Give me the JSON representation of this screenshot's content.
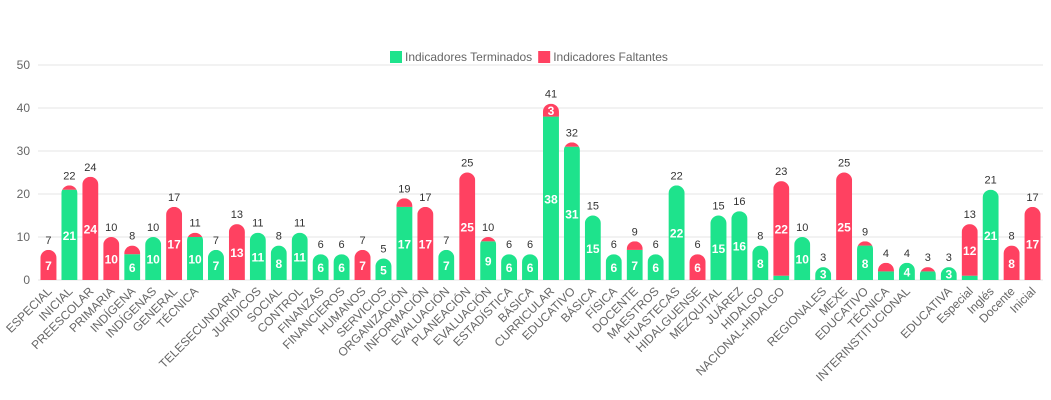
{
  "chart_data": {
    "type": "stacked-bar",
    "categories": [
      "ESPECIAL",
      "INICIAL",
      "PREESCOLAR",
      "PRIMARIA",
      "INDÍGENA",
      "INDÍGENAS",
      "GENERAL",
      "TÉCNICA",
      null,
      "TELESECUNDARIA",
      "JURÍDICOS",
      "SOCIAL",
      "CONTROL",
      "FINANZAS",
      "FINANCIEROS",
      "HUMANOS",
      "SERVICIOS",
      "ORGANIZACIÓN",
      "INFORMACIÓN",
      "EVALUACIÓN",
      "PLANEACIÓN",
      "EVALUACIÓN",
      "ESTADÍSTICA",
      "BÁSICA",
      "CURRICULAR",
      "EDUCATIVO",
      "BÁSICA",
      "FÍSICA",
      "DOCENTE",
      "MAESTROS",
      "HUASTECAS",
      "HIDALGUENSE",
      "MEZQUITAL",
      "JUÁREZ",
      "HIDALGO",
      "NACIONAL-HIDALGO",
      null,
      "REGIONALES",
      "MEXE",
      "EDUCATIVO",
      "TÉCNICA",
      "INTERINSTITUCIONAL",
      null,
      "EDUCATIVA",
      "Especial",
      "Inglés",
      "Docente",
      "Inicial"
    ],
    "series": [
      {
        "name": "Indicadores Terminados",
        "color": "#1ee38c",
        "values": [
          0,
          21,
          0,
          0,
          6,
          10,
          0,
          10,
          7,
          0,
          11,
          8,
          11,
          6,
          6,
          0,
          5,
          17,
          0,
          7,
          0,
          9,
          6,
          6,
          38,
          31,
          15,
          6,
          7,
          6,
          22,
          0,
          15,
          16,
          8,
          1,
          10,
          3,
          0,
          8,
          2,
          4,
          2,
          3,
          1,
          21,
          0,
          0
        ]
      },
      {
        "name": "Indicadores Faltantes",
        "color": "#ff4161",
        "values": [
          7,
          1,
          24,
          10,
          2,
          0,
          17,
          1,
          0,
          13,
          0,
          0,
          0,
          0,
          0,
          7,
          0,
          2,
          17,
          0,
          25,
          1,
          0,
          0,
          3,
          1,
          0,
          0,
          2,
          0,
          0,
          6,
          0,
          0,
          0,
          22,
          0,
          0,
          25,
          1,
          2,
          0,
          1,
          0,
          12,
          0,
          8,
          17
        ]
      }
    ],
    "totals": [
      7,
      22,
      24,
      10,
      8,
      10,
      17,
      11,
      7,
      13,
      11,
      8,
      11,
      6,
      6,
      7,
      5,
      19,
      17,
      7,
      25,
      10,
      6,
      6,
      41,
      32,
      15,
      6,
      9,
      6,
      22,
      6,
      15,
      16,
      8,
      23,
      10,
      3,
      25,
      9,
      4,
      4,
      3,
      3,
      13,
      21,
      8,
      17
    ],
    "ylim": [
      0,
      50
    ],
    "yticks": [
      0,
      10,
      20,
      30,
      40,
      50
    ],
    "grid": true,
    "legend": "top"
  }
}
